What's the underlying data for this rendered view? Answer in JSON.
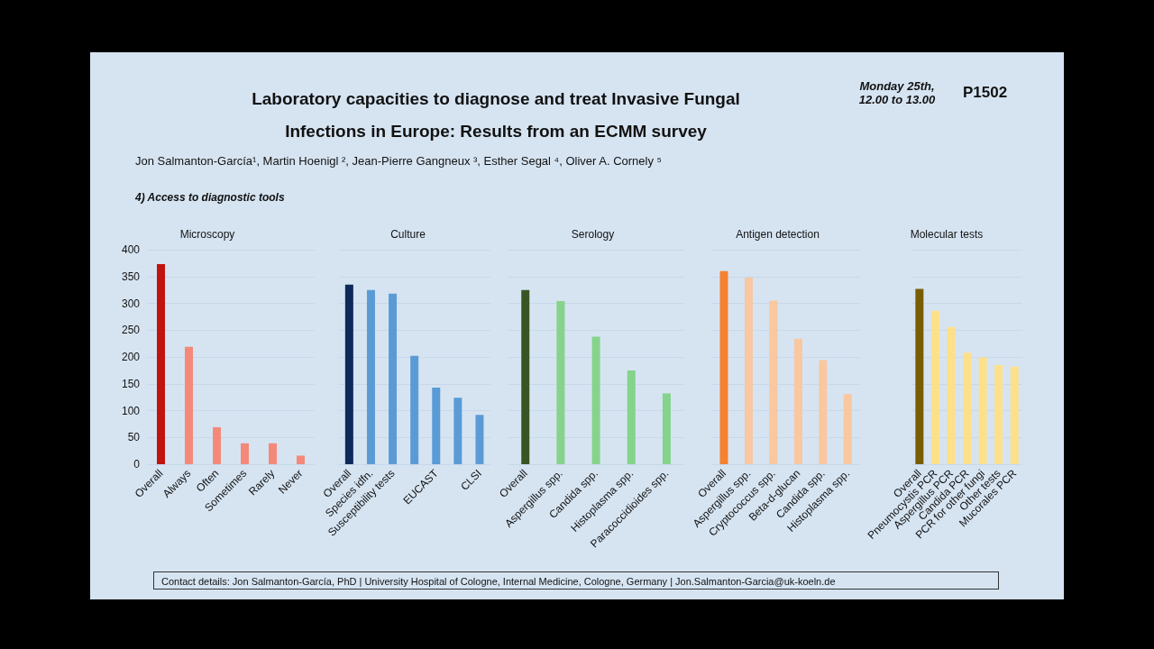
{
  "chart_data": [
    {
      "type": "other",
      "title": "Laboratory capacities to diagnose and treat Invasive Fungal Infections in Europe: Results from an ECMM survey",
      "subtitle": "4) Access to diagnostic tools",
      "annotations": [
        "Jon Salmanton-García¹, Martin Hoenigl ², Jean-Pierre Gangneux ³, Esther Segal ⁴, Oliver A. Cornely ⁵",
        "Monday 25th, 12.00 to 13.00",
        "P1502",
        "Contact details: Jon Salmanton-García, PhD | University Hospital of Cologne, Internal Medicine, Cologne, Germany | Jon.Salmanton-Garcia@uk-koeln.de"
      ]
    },
    {
      "type": "bar",
      "title": "Microscopy",
      "categories": [
        "Overall",
        "Always",
        "Often",
        "Sometimes",
        "Rarely",
        "Never"
      ],
      "values": [
        373,
        219,
        69,
        39,
        39,
        16
      ],
      "colors": [
        "#c0150f",
        "#f4897a",
        "#f4897a",
        "#f4897a",
        "#f4897a",
        "#f4897a"
      ],
      "ylim": [
        0,
        400
      ],
      "yticks": [
        0,
        50,
        100,
        150,
        200,
        250,
        300,
        350,
        400
      ],
      "grid": "y"
    },
    {
      "type": "bar",
      "title": "Culture",
      "categories": [
        "Overall",
        "Species idfn.",
        "Susceptibility tests",
        null,
        "EUCAST",
        null,
        "CLSI"
      ],
      "values": [
        335,
        325,
        318,
        202,
        143,
        124,
        92
      ],
      "colors": [
        "#0d2a5a",
        "#5b9bd5",
        "#5b9bd5",
        "#5b9bd5",
        "#5b9bd5",
        "#5b9bd5",
        "#5b9bd5"
      ],
      "ylim": [
        0,
        400
      ],
      "yticks": [
        0,
        50,
        100,
        150,
        200,
        250,
        300,
        350,
        400
      ],
      "grid": "y",
      "tick_labels": "x"
    },
    {
      "type": "bar",
      "title": "Serology",
      "categories": [
        "Overall",
        "Aspergillus spp.",
        "Candida spp.",
        "Histoplasma spp.",
        "Paracoccidioides spp."
      ],
      "values": [
        325,
        304,
        238,
        175,
        132
      ],
      "colors": [
        "#375623",
        "#86d38b",
        "#86d38b",
        "#86d38b",
        "#86d38b"
      ],
      "ylim": [
        0,
        400
      ],
      "yticks": [
        0,
        50,
        100,
        150,
        200,
        250,
        300,
        350,
        400
      ],
      "grid": "y",
      "tick_labels": "x"
    },
    {
      "type": "bar",
      "title": "Antigen detection",
      "categories": [
        "Overall",
        "Aspergillus spp.",
        "Cryptococcus spp.",
        "Beta-d-glucan",
        "Candida spp.",
        "Histoplasma spp."
      ],
      "values": [
        360,
        348,
        305,
        234,
        194,
        131
      ],
      "colors": [
        "#f58230",
        "#f9c7a0",
        "#f9c7a0",
        "#f9c7a0",
        "#f9c7a0",
        "#f9c7a0"
      ],
      "ylim": [
        0,
        400
      ],
      "yticks": [
        0,
        50,
        100,
        150,
        200,
        250,
        300,
        350,
        400
      ],
      "grid": "y",
      "tick_labels": "x"
    },
    {
      "type": "bar",
      "title": "Molecular tests",
      "categories": [
        "Overall",
        "Pneumocystis PCR",
        "Aspergillus PCR",
        "Candida PCR",
        "PCR for other fungi",
        "Other tests",
        "Mucorales PCR"
      ],
      "values": [
        327,
        286,
        256,
        208,
        199,
        185,
        182
      ],
      "colors": [
        "#7a5c05",
        "#fde08a",
        "#fde08a",
        "#fde08a",
        "#fde08a",
        "#fde08a",
        "#fde08a"
      ],
      "ylim": [
        0,
        400
      ],
      "yticks": [
        0,
        50,
        100,
        150,
        200,
        250,
        300,
        350,
        400
      ],
      "grid": "y",
      "tick_labels": "x"
    }
  ]
}
